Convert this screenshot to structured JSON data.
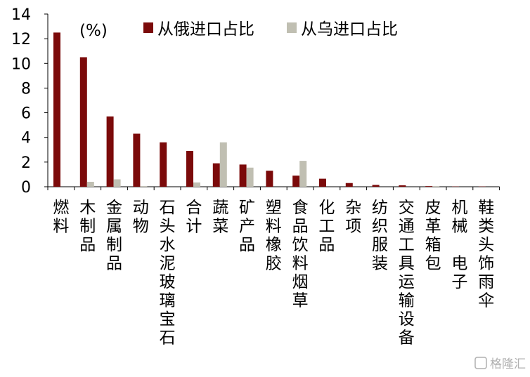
{
  "chart_data": {
    "type": "bar",
    "unit_label": "(%)",
    "categories": [
      "燃料",
      "木制品",
      "金属制品",
      "动物",
      "石头水泥玻璃宝石",
      "合计",
      "蔬菜",
      "矿产品",
      "塑料橡胶",
      "食品饮料烟草",
      "化工品",
      "杂项",
      "纺织服装",
      "交通工具运输设备",
      "皮革箱包",
      "机械 电子",
      "鞋类头饰雨伞"
    ],
    "series": [
      {
        "name": "从俄进口占比",
        "color": "#7b0a0a",
        "values": [
          12.5,
          10.5,
          5.7,
          4.3,
          3.6,
          2.9,
          1.9,
          1.8,
          1.3,
          0.9,
          0.65,
          0.3,
          0.15,
          0.12,
          0.05,
          0.02,
          0.02
        ]
      },
      {
        "name": "从乌进口占比",
        "color": "#c0bfb2",
        "values": [
          0,
          0.4,
          0.6,
          0.05,
          0,
          0.35,
          3.6,
          1.55,
          0,
          2.1,
          0,
          0,
          0,
          0,
          0.05,
          0,
          0
        ]
      }
    ],
    "ylim": [
      0,
      14
    ],
    "yticks": [
      0,
      2,
      4,
      6,
      8,
      10,
      12,
      14
    ],
    "legend_position": "top",
    "grid": false
  },
  "watermark": "格隆汇"
}
